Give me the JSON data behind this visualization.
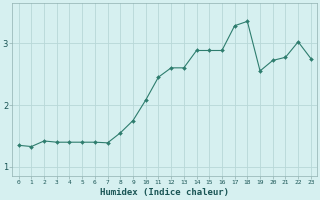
{
  "x": [
    0,
    1,
    2,
    3,
    4,
    5,
    6,
    7,
    8,
    9,
    10,
    11,
    12,
    13,
    14,
    15,
    16,
    17,
    18,
    19,
    20,
    21,
    22,
    23
  ],
  "y": [
    1.35,
    1.33,
    1.42,
    1.4,
    1.4,
    1.4,
    1.4,
    1.39,
    1.55,
    1.75,
    2.08,
    2.45,
    2.6,
    2.6,
    2.88,
    2.88,
    2.88,
    3.28,
    3.35,
    2.55,
    2.72,
    2.77,
    3.02,
    2.75
  ],
  "line_color": "#2e7d6e",
  "marker": "D",
  "marker_size": 2.0,
  "bg_color": "#d6f0f0",
  "grid_color": "#b8d8d8",
  "xlabel": "Humidex (Indice chaleur)",
  "xlim": [
    -0.5,
    23.5
  ],
  "ylim": [
    0.85,
    3.65
  ],
  "yticks": [
    1,
    2,
    3
  ],
  "xticks": [
    0,
    1,
    2,
    3,
    4,
    5,
    6,
    7,
    8,
    9,
    10,
    11,
    12,
    13,
    14,
    15,
    16,
    17,
    18,
    19,
    20,
    21,
    22,
    23
  ],
  "tick_label_color": "#1a5555",
  "xlabel_color": "#1a5555",
  "xtick_fontsize": 4.5,
  "ytick_fontsize": 6.0,
  "xlabel_fontsize": 6.5
}
